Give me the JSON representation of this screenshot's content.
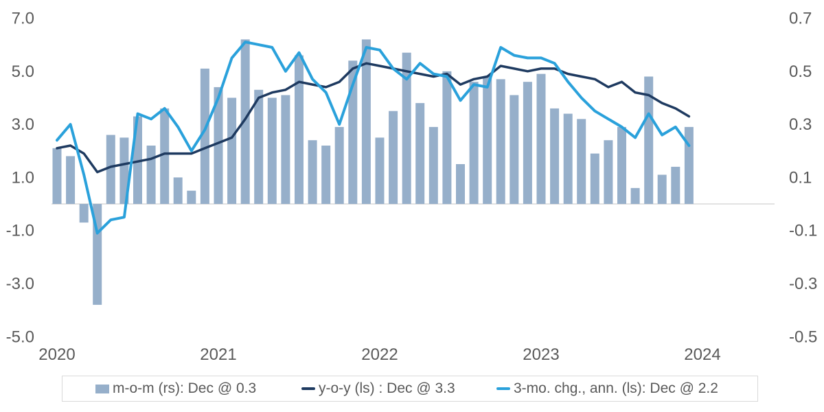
{
  "chart_data": {
    "type": "combo-bar-line",
    "title": "",
    "months": [
      "2020-01",
      "2020-02",
      "2020-03",
      "2020-04",
      "2020-05",
      "2020-06",
      "2020-07",
      "2020-08",
      "2020-09",
      "2020-10",
      "2020-11",
      "2020-12",
      "2021-01",
      "2021-02",
      "2021-03",
      "2021-04",
      "2021-05",
      "2021-06",
      "2021-07",
      "2021-08",
      "2021-09",
      "2021-10",
      "2021-11",
      "2021-12",
      "2022-01",
      "2022-02",
      "2022-03",
      "2022-04",
      "2022-05",
      "2022-06",
      "2022-07",
      "2022-08",
      "2022-09",
      "2022-10",
      "2022-11",
      "2022-12",
      "2023-01",
      "2023-02",
      "2023-03",
      "2023-04",
      "2023-05",
      "2023-06",
      "2023-07",
      "2023-08",
      "2023-09",
      "2023-10",
      "2023-11",
      "2023-12"
    ],
    "series": [
      {
        "name": "m-o-m (rs): Dec @ 0.3",
        "type": "bar",
        "axis": "right",
        "color": "#96AFCA",
        "values": [
          0.21,
          0.18,
          -0.07,
          -0.38,
          0.26,
          0.25,
          0.33,
          0.22,
          0.36,
          0.1,
          0.05,
          0.51,
          0.44,
          0.4,
          0.62,
          0.43,
          0.4,
          0.41,
          0.56,
          0.24,
          0.22,
          0.29,
          0.54,
          0.62,
          0.25,
          0.35,
          0.57,
          0.38,
          0.29,
          0.5,
          0.15,
          0.46,
          0.48,
          0.47,
          0.41,
          0.46,
          0.49,
          0.36,
          0.34,
          0.32,
          0.19,
          0.24,
          0.29,
          0.06,
          0.48,
          0.11,
          0.14,
          0.29
        ]
      },
      {
        "name": "y-o-y (ls) : Dec @ 3.3",
        "type": "line",
        "axis": "left",
        "color": "#1E3A60",
        "values": [
          2.1,
          2.2,
          1.9,
          1.2,
          1.4,
          1.5,
          1.6,
          1.7,
          1.9,
          1.9,
          1.9,
          2.1,
          2.3,
          2.5,
          3.2,
          4.0,
          4.2,
          4.3,
          4.6,
          4.5,
          4.4,
          4.6,
          5.1,
          5.3,
          5.2,
          5.1,
          5.0,
          4.9,
          4.8,
          4.9,
          4.5,
          4.7,
          4.8,
          5.2,
          5.1,
          5.0,
          5.1,
          5.1,
          4.9,
          4.8,
          4.7,
          4.4,
          4.6,
          4.2,
          4.1,
          3.8,
          3.6,
          3.3
        ]
      },
      {
        "name": "3-mo. chg., ann. (ls): Dec @ 2.2",
        "type": "line",
        "axis": "left",
        "color": "#2AA1DB",
        "values": [
          2.4,
          3.0,
          1.1,
          -1.1,
          -0.6,
          -0.5,
          3.4,
          3.2,
          3.6,
          2.9,
          2.0,
          2.8,
          4.0,
          5.5,
          6.1,
          6.0,
          5.9,
          5.0,
          5.7,
          4.7,
          4.2,
          3.0,
          4.5,
          5.9,
          5.8,
          5.1,
          4.7,
          5.3,
          4.9,
          4.8,
          3.9,
          4.5,
          4.4,
          5.9,
          5.6,
          5.5,
          5.5,
          5.3,
          4.6,
          4.0,
          3.5,
          3.2,
          2.9,
          2.5,
          3.4,
          2.6,
          2.9,
          2.2
        ]
      }
    ],
    "left_axis": {
      "range": [
        -5,
        7
      ],
      "ticks": [
        {
          "label": "7.0",
          "value": 7
        },
        {
          "label": "5.0",
          "value": 5
        },
        {
          "label": "3.0",
          "value": 3
        },
        {
          "label": "1.0",
          "value": 1
        },
        {
          "label": "-1.0",
          "value": -1
        },
        {
          "label": "-3.0",
          "value": -3
        },
        {
          "label": "-5.0",
          "value": -5
        }
      ]
    },
    "right_axis": {
      "range": [
        -0.5,
        0.7
      ],
      "ticks": [
        {
          "label": "0.7",
          "value": 0.7
        },
        {
          "label": "0.5",
          "value": 0.5
        },
        {
          "label": "0.3",
          "value": 0.3
        },
        {
          "label": "0.1",
          "value": 0.1
        },
        {
          "label": "-0.1",
          "value": -0.1
        },
        {
          "label": "-0.3",
          "value": -0.3
        },
        {
          "label": "-0.5",
          "value": -0.5
        }
      ]
    },
    "x_axis": {
      "labels": [
        "2020",
        "2021",
        "2022",
        "2023",
        "2024"
      ]
    },
    "legend": [
      {
        "label": "m-o-m (rs): Dec @ 0.3",
        "color": "#96AFCA",
        "shape": "bar"
      },
      {
        "label": "y-o-y (ls) : Dec @ 3.3",
        "color": "#1E3A60",
        "shape": "line"
      },
      {
        "label": "3-mo. chg., ann. (ls): Dec @ 2.2",
        "color": "#2AA1DB",
        "shape": "line"
      }
    ],
    "style": {
      "axis_line_color": "#D9D9D9",
      "tick_label_color": "#595959",
      "legend_border_color": "#D9D9D9",
      "grid": "off",
      "legend_position": "bottom"
    }
  }
}
